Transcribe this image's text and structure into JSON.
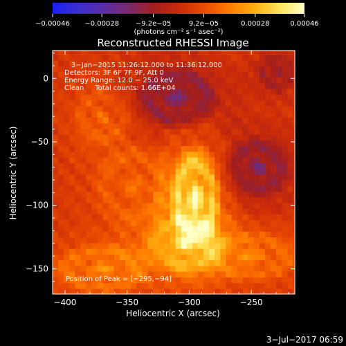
{
  "chart_data": {
    "type": "heatmap",
    "title": "Reconstructed RHESSI Image",
    "xlabel": "Heliocentric X (arcsec)",
    "ylabel": "Heliocentric Y (arcsec)",
    "xlim": [
      -410,
      -215
    ],
    "ylim": [
      -170,
      22
    ],
    "x_ticks": [
      -400,
      -350,
      -300,
      -250
    ],
    "x_tick_labels": [
      "−400",
      "−350",
      "−300",
      "−250"
    ],
    "y_ticks": [
      -150,
      -100,
      -50,
      0
    ],
    "y_tick_labels": [
      "−150",
      "−100",
      "−50",
      "0"
    ],
    "colorbar": {
      "range": [
        -0.00046,
        0.00046
      ],
      "ticks": [
        -0.00046,
        -0.00028,
        -9.2e-05,
        9.2e-05,
        0.00028,
        0.00046
      ],
      "tick_labels": [
        "−0.00046",
        "−0.00028",
        "−9.2e−05",
        "9.2e−05",
        "0.00028",
        "0.00046"
      ],
      "units_label": "(photons cm⁻² s⁻¹ asec⁻²)",
      "colormap": [
        "#1b1ef2",
        "#3a2fd0",
        "#5a2ea8",
        "#7b2a6e",
        "#a11e1e",
        "#c82a0a",
        "#ea4a00",
        "#ff7a00",
        "#ffae10",
        "#ffe35a",
        "#ffffc8"
      ]
    },
    "info_lines": [
      "3−Jan−2015 11:26:12.000 to 11:36:12.000",
      "Detectors: 3F 6F 7F 9F, Att 0",
      "Energy Range: 12.0 − 25.0 keV",
      "Clean     Total counts: 1.66E+04"
    ],
    "peak_label": "Position of Peak = [−295,−94]",
    "peak": [
      -295,
      -94
    ],
    "sources": [
      {
        "x": -295,
        "y": -94,
        "amp": 1.0,
        "sx": 15,
        "sy": 30
      },
      {
        "x": -305,
        "y": -130,
        "amp": 0.55,
        "sx": 25,
        "sy": 18
      },
      {
        "x": -370,
        "y": -150,
        "amp": 0.45,
        "sx": 30,
        "sy": 15
      },
      {
        "x": -250,
        "y": -140,
        "amp": 0.4,
        "sx": 30,
        "sy": 15
      },
      {
        "x": -345,
        "y": -85,
        "amp": 0.3,
        "sx": 25,
        "sy": 25
      },
      {
        "x": -370,
        "y": -30,
        "amp": 0.3,
        "sx": 18,
        "sy": 18
      },
      {
        "x": -245,
        "y": -70,
        "amp": -0.55,
        "sx": 20,
        "sy": 18
      },
      {
        "x": -310,
        "y": -15,
        "amp": -0.6,
        "sx": 25,
        "sy": 18
      },
      {
        "x": -230,
        "y": 5,
        "amp": -0.4,
        "sx": 12,
        "sy": 12
      }
    ]
  },
  "footer": {
    "timestamp": "3−Jul−2017 06:59"
  }
}
